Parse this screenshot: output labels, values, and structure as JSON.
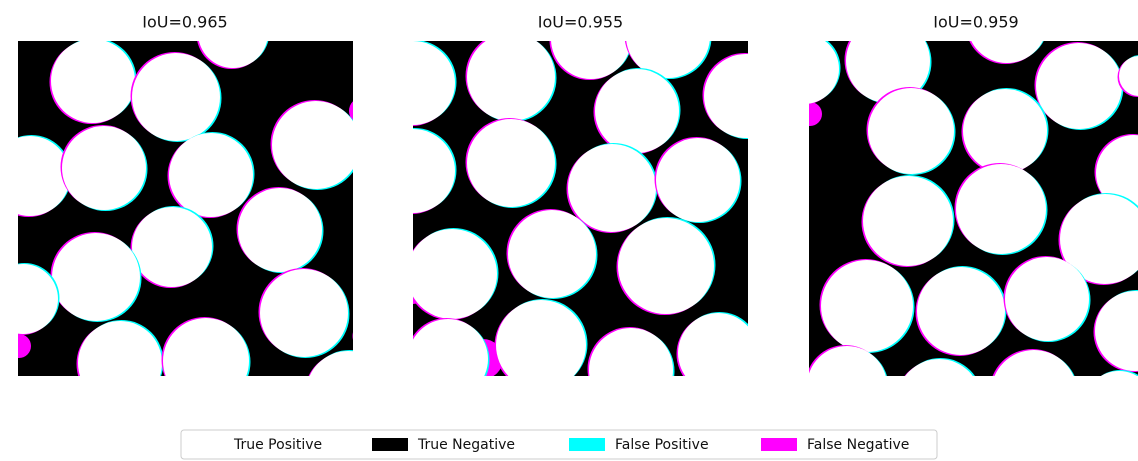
{
  "panels": [
    {
      "title": "IoU=0.965"
    },
    {
      "title": "IoU=0.955"
    },
    {
      "title": "IoU=0.959"
    }
  ],
  "legend": {
    "items": [
      {
        "label": "True Positive",
        "color": "#ffffff"
      },
      {
        "label": "True Negative",
        "color": "#000000"
      },
      {
        "label": "False Positive",
        "color": "#00ffff"
      },
      {
        "label": "False Negative",
        "color": "#ff00ff"
      }
    ]
  }
}
